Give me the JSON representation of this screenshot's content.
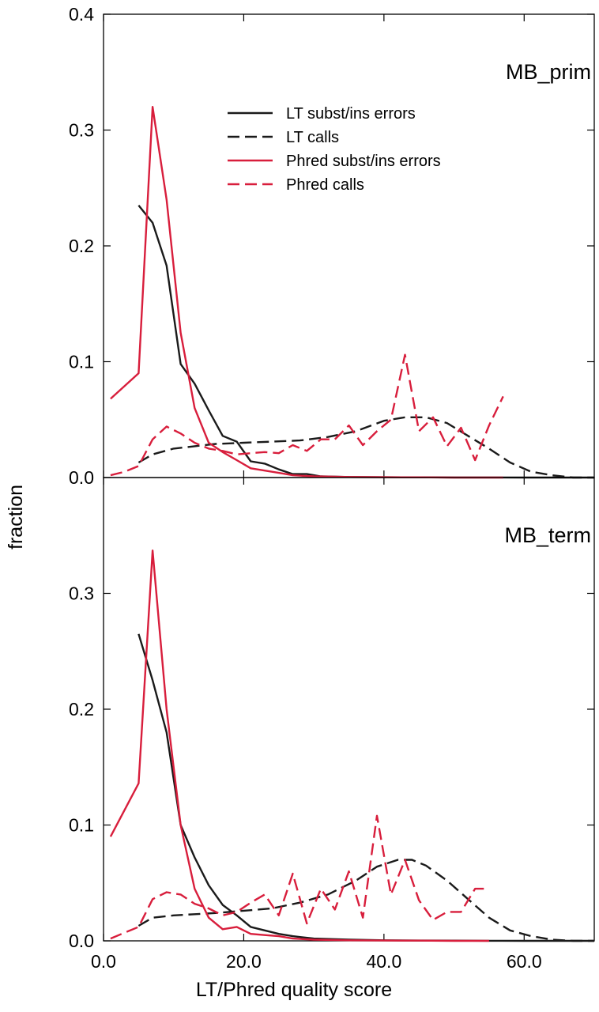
{
  "colors": {
    "lt": "#1a1a1a",
    "phred": "#d81e3c"
  },
  "chart_data": {
    "type": "line",
    "xlabel": "LT/Phred quality score",
    "ylabel": "fraction",
    "xlim": [
      0,
      70
    ],
    "x_ticks": [
      "0.0",
      "20.0",
      "40.0",
      "60.0"
    ],
    "x_tick_values": [
      0,
      20,
      40,
      60
    ],
    "grid": false,
    "legend_position": "top-center",
    "legend_labels": [
      "LT subst/ins errors",
      "LT calls",
      "Phred subst/ins errors",
      "Phred calls"
    ],
    "panels": [
      {
        "title": "MB_prim",
        "ylim": [
          0,
          0.4
        ],
        "y_ticks": [
          "0.0",
          "0.1",
          "0.2",
          "0.3",
          "0.4"
        ],
        "y_tick_values": [
          0,
          0.1,
          0.2,
          0.3,
          0.4
        ],
        "series": [
          {
            "name": "LT subst/ins errors",
            "color": "#1a1a1a",
            "dash": "solid",
            "x": [
              5,
              7,
              9,
              11,
              13,
              15,
              17,
              19,
              21,
              23,
              25,
              27,
              29,
              31,
              35,
              40,
              45,
              50,
              55,
              60,
              65,
              70
            ],
            "y": [
              0.235,
              0.22,
              0.183,
              0.098,
              0.081,
              0.058,
              0.036,
              0.031,
              0.014,
              0.012,
              0.007,
              0.003,
              0.003,
              0.001,
              0.0005,
              0.0003,
              0.0002,
              0.0001,
              0.0001,
              0,
              0,
              0
            ]
          },
          {
            "name": "LT calls",
            "color": "#1a1a1a",
            "dash": "dashed",
            "x": [
              5,
              7,
              10,
              13,
              16,
              20,
              24,
              28,
              32,
              36,
              40,
              43,
              46,
              49,
              52,
              55,
              58,
              61,
              64,
              67,
              70
            ],
            "y": [
              0.013,
              0.02,
              0.025,
              0.027,
              0.029,
              0.03,
              0.031,
              0.032,
              0.035,
              0.04,
              0.049,
              0.052,
              0.052,
              0.047,
              0.036,
              0.025,
              0.013,
              0.005,
              0.002,
              0,
              0
            ]
          },
          {
            "name": "Phred subst/ins errors",
            "color": "#d81e3c",
            "dash": "solid",
            "x": [
              1,
              5,
              7,
              9,
              11,
              13,
              15,
              17,
              19,
              21,
              23,
              25,
              27,
              30,
              35,
              40,
              45,
              50,
              57
            ],
            "y": [
              0.068,
              0.09,
              0.32,
              0.24,
              0.125,
              0.06,
              0.03,
              0.022,
              0.015,
              0.008,
              0.006,
              0.004,
              0.002,
              0.001,
              0.0005,
              0.0003,
              0.0002,
              0,
              0
            ]
          },
          {
            "name": "Phred calls",
            "color": "#d81e3c",
            "dash": "dashed",
            "x": [
              1,
              3,
              5,
              7,
              9,
              11,
              13,
              15,
              17,
              19,
              21,
              23,
              25,
              27,
              29,
              31,
              33,
              35,
              37,
              39,
              41,
              43,
              45,
              47,
              49,
              51,
              53,
              55,
              57
            ],
            "y": [
              0.002,
              0.005,
              0.01,
              0.033,
              0.044,
              0.038,
              0.03,
              0.025,
              0.023,
              0.02,
              0.021,
              0.022,
              0.021,
              0.028,
              0.023,
              0.033,
              0.033,
              0.045,
              0.028,
              0.04,
              0.05,
              0.106,
              0.04,
              0.052,
              0.027,
              0.043,
              0.015,
              0.045,
              0.07
            ]
          }
        ]
      },
      {
        "title": "MB_term",
        "ylim": [
          0,
          0.4
        ],
        "y_ticks": [
          "0.0",
          "0.1",
          "0.2",
          "0.3"
        ],
        "y_tick_values": [
          0,
          0.1,
          0.2,
          0.3
        ],
        "series": [
          {
            "name": "LT subst/ins errors",
            "color": "#1a1a1a",
            "dash": "solid",
            "x": [
              5,
              7,
              9,
              11,
              13,
              15,
              17,
              19,
              21,
              23,
              25,
              27,
              30,
              35,
              40,
              45,
              50,
              55,
              60,
              65,
              70
            ],
            "y": [
              0.265,
              0.225,
              0.18,
              0.1,
              0.072,
              0.048,
              0.031,
              0.022,
              0.012,
              0.009,
              0.006,
              0.004,
              0.002,
              0.001,
              0.0005,
              0.0003,
              0.0002,
              0.0001,
              0,
              0,
              0
            ]
          },
          {
            "name": "LT calls",
            "color": "#1a1a1a",
            "dash": "dashed",
            "x": [
              5,
              7,
              10,
              13,
              16,
              20,
              24,
              28,
              32,
              36,
              39,
              42,
              44,
              46,
              49,
              52,
              55,
              58,
              61,
              64,
              67,
              70
            ],
            "y": [
              0.013,
              0.02,
              0.022,
              0.023,
              0.024,
              0.026,
              0.028,
              0.033,
              0.04,
              0.052,
              0.064,
              0.07,
              0.07,
              0.065,
              0.052,
              0.036,
              0.02,
              0.009,
              0.004,
              0.001,
              0,
              0
            ]
          },
          {
            "name": "Phred subst/ins errors",
            "color": "#d81e3c",
            "dash": "solid",
            "x": [
              1,
              5,
              7,
              9,
              11,
              13,
              15,
              17,
              19,
              21,
              23,
              25,
              27,
              30,
              35,
              40,
              45,
              50,
              55
            ],
            "y": [
              0.09,
              0.136,
              0.337,
              0.2,
              0.1,
              0.045,
              0.02,
              0.01,
              0.012,
              0.006,
              0.005,
              0.004,
              0.002,
              0.001,
              0.0005,
              0.0003,
              0.0002,
              0,
              0
            ]
          },
          {
            "name": "Phred calls",
            "color": "#d81e3c",
            "dash": "dashed",
            "x": [
              1,
              3,
              5,
              7,
              9,
              11,
              13,
              15,
              17,
              19,
              21,
              23,
              25,
              27,
              29,
              31,
              33,
              35,
              37,
              39,
              41,
              43,
              45,
              47,
              49,
              51,
              53,
              55
            ],
            "y": [
              0.002,
              0.007,
              0.012,
              0.036,
              0.042,
              0.04,
              0.032,
              0.028,
              0.022,
              0.025,
              0.033,
              0.04,
              0.022,
              0.058,
              0.015,
              0.045,
              0.027,
              0.06,
              0.02,
              0.108,
              0.04,
              0.07,
              0.035,
              0.018,
              0.025,
              0.025,
              0.045,
              0.045
            ]
          }
        ]
      }
    ]
  }
}
